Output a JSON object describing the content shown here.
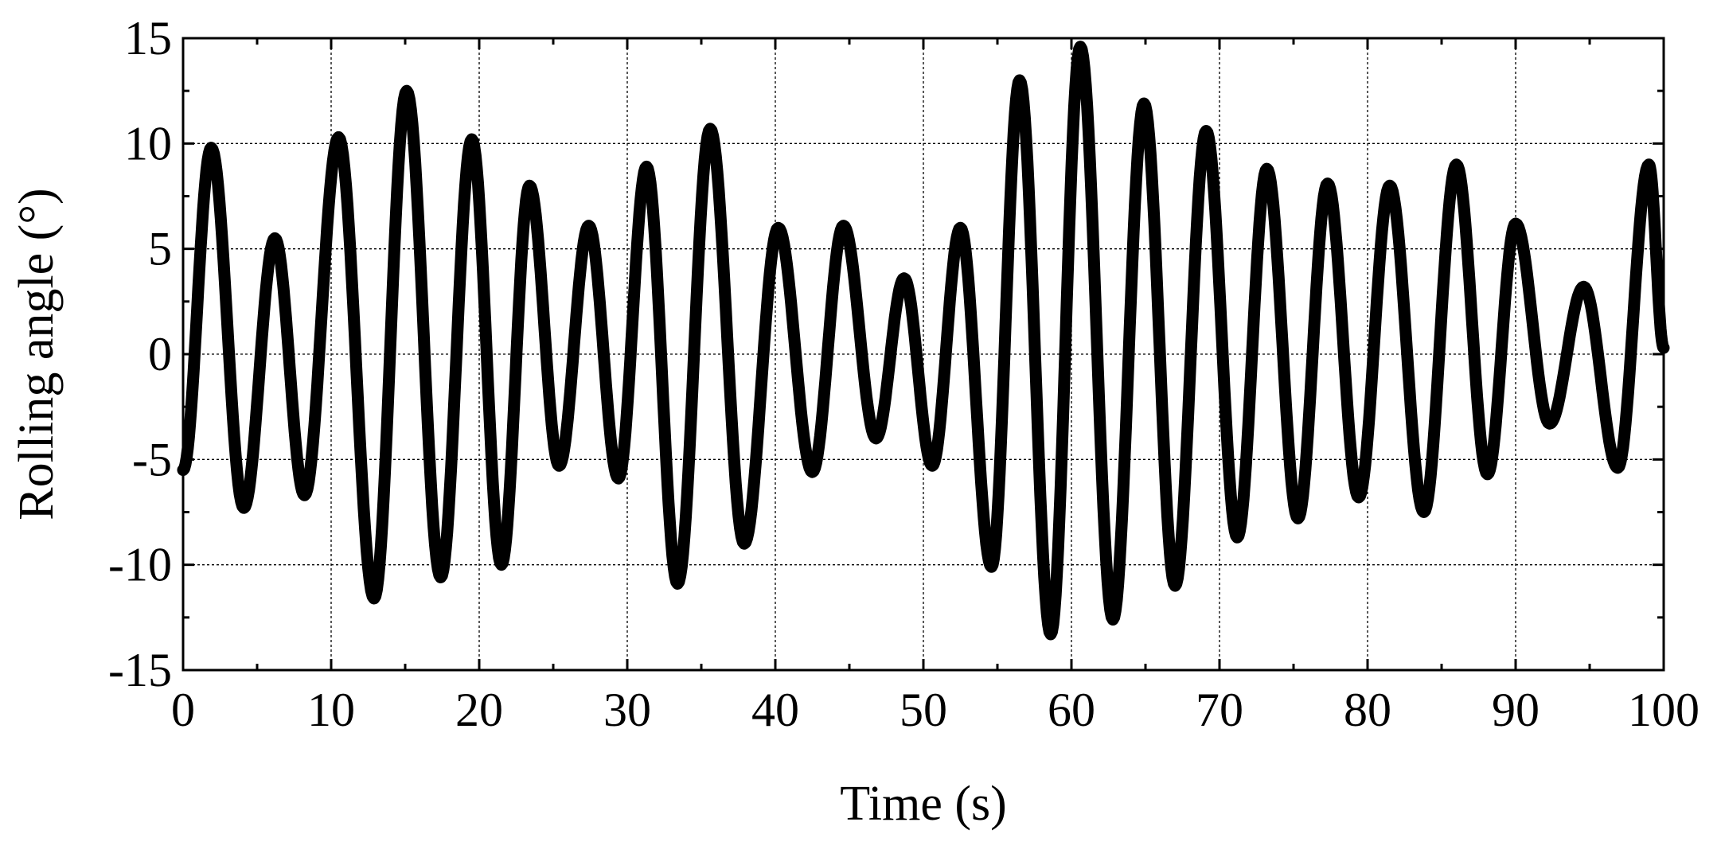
{
  "chart_data": {
    "type": "line",
    "xlabel": "Time (s)",
    "ylabel": "Rolling angle (°)",
    "xlim": [
      0,
      100
    ],
    "ylim": [
      -15,
      15
    ],
    "xticks": [
      0,
      10,
      20,
      30,
      40,
      50,
      60,
      70,
      80,
      90,
      100
    ],
    "yticks": [
      -15,
      -10,
      -5,
      0,
      5,
      10,
      15
    ],
    "grid": true,
    "legend": "none",
    "line_color": "#000000",
    "series": [
      {
        "x": [
          0,
          1.9,
          4.1,
          6.2,
          8.2,
          10.5,
          12.9,
          15.1,
          17.4,
          19.5,
          21.5,
          23.4,
          25.4,
          27.4,
          29.4,
          31.3,
          33.4,
          35.6,
          37.9,
          40.2,
          42.5,
          44.6,
          46.8,
          48.7,
          50.6,
          52.5,
          54.6,
          56.5,
          58.6,
          60.6,
          62.8,
          64.9,
          67.0,
          69.1,
          71.2,
          73.2,
          75.3,
          77.3,
          79.4,
          81.5,
          83.8,
          86.0,
          88.1,
          90.0,
          92.3,
          94.6,
          96.9,
          99.0,
          100
        ],
        "y": [
          -5.5,
          9.8,
          -7.3,
          5.5,
          -6.7,
          10.3,
          -11.6,
          12.5,
          -10.6,
          10.2,
          -10.0,
          8.0,
          -5.3,
          6.1,
          -5.9,
          8.9,
          -10.9,
          10.7,
          -9.0,
          6.0,
          -5.6,
          6.1,
          -4.0,
          3.6,
          -5.3,
          6.0,
          -10.1,
          13.0,
          -13.3,
          14.6,
          -12.6,
          11.9,
          -11.0,
          10.6,
          -8.7,
          8.8,
          -7.8,
          8.1,
          -6.8,
          8.0,
          -7.5,
          9.0,
          -5.7,
          6.2,
          -3.3,
          3.2,
          -5.4,
          9.0,
          0.3
        ]
      }
    ]
  }
}
